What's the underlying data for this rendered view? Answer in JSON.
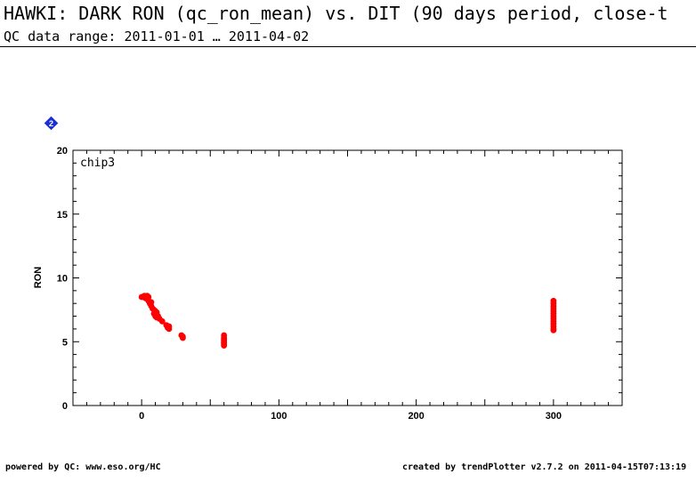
{
  "header": {
    "title": "HAWKI: DARK RON (qc_ron_mean) vs. DIT (90 days period, close-t",
    "subtitle": "QC data range: 2011-01-01 … 2011-04-02"
  },
  "badge": {
    "label": "2",
    "color": "#1a2fd6"
  },
  "footer": {
    "left": "powered by QC: www.eso.org/HC",
    "right": "created by trendPlotter v2.7.2 on 2011-04-15T07:13:19"
  },
  "chart_data": {
    "type": "scatter",
    "panel_label": "chip3",
    "xlabel": "",
    "ylabel": "RON",
    "xlim": [
      -50,
      350
    ],
    "ylim": [
      0,
      20
    ],
    "xticks": [
      0,
      100,
      200,
      300
    ],
    "yticks": [
      0,
      5,
      10,
      15,
      20
    ],
    "marker_color": "#ff0000",
    "series": [
      {
        "x": [
          0,
          1,
          2,
          3,
          3,
          4,
          5,
          5,
          6,
          7,
          7,
          8,
          9,
          9,
          10,
          10,
          11,
          11,
          12,
          13,
          15,
          18,
          19,
          20,
          20,
          29,
          30,
          30,
          60,
          60,
          60,
          60,
          60,
          60,
          60,
          60,
          300,
          300,
          300,
          300,
          300,
          300,
          300,
          300,
          300,
          300,
          300,
          300,
          300
        ],
        "y": [
          8.5,
          8.5,
          8.6,
          8.5,
          8.4,
          8.6,
          8.5,
          8.2,
          8.0,
          7.8,
          8.1,
          7.6,
          7.5,
          7.2,
          7.4,
          7.0,
          7.3,
          6.9,
          7.0,
          6.8,
          6.6,
          6.3,
          6.1,
          6.0,
          6.2,
          5.5,
          5.4,
          5.3,
          5.5,
          5.3,
          5.2,
          5.1,
          5.0,
          4.9,
          4.8,
          4.7,
          8.2,
          8.0,
          7.8,
          7.6,
          7.4,
          7.2,
          7.0,
          6.8,
          6.6,
          6.4,
          6.2,
          6.0,
          5.9
        ]
      }
    ]
  }
}
